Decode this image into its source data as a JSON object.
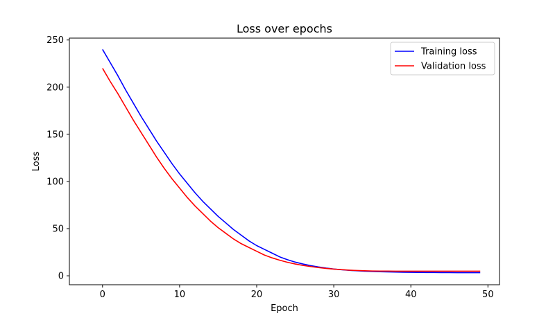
{
  "chart_data": {
    "type": "line",
    "title": "Loss over epochs",
    "xlabel": "Epoch",
    "ylabel": "Loss",
    "xlim": [
      -4.3,
      51.5
    ],
    "ylim": [
      -9.5,
      252
    ],
    "xticks": [
      0,
      10,
      20,
      30,
      40,
      50
    ],
    "yticks": [
      0,
      50,
      100,
      150,
      200,
      250
    ],
    "grid": false,
    "legend_position": "top-right",
    "x": [
      0,
      1,
      2,
      3,
      4,
      5,
      6,
      7,
      8,
      9,
      10,
      11,
      12,
      13,
      14,
      15,
      16,
      17,
      18,
      19,
      20,
      21,
      22,
      23,
      24,
      25,
      26,
      27,
      28,
      29,
      30,
      31,
      32,
      33,
      34,
      35,
      36,
      37,
      38,
      39,
      40,
      41,
      42,
      43,
      44,
      45,
      46,
      47,
      48,
      49
    ],
    "series": [
      {
        "name": "Training loss",
        "color": "#0000ff",
        "values": [
          240,
          226,
          212,
          197,
          183,
          169,
          156,
          143,
          131,
          119,
          108,
          98,
          88,
          79,
          71,
          63,
          56,
          49,
          43,
          37,
          32,
          28,
          24,
          20,
          17,
          14.5,
          12.5,
          10.8,
          9.4,
          8.2,
          7.2,
          6.4,
          5.8,
          5.3,
          4.9,
          4.6,
          4.3,
          4.1,
          3.9,
          3.8,
          3.7,
          3.6,
          3.5,
          3.5,
          3.4,
          3.4,
          3.3,
          3.3,
          3.3,
          3.3
        ]
      },
      {
        "name": "Validation loss",
        "color": "#ff0000",
        "values": [
          220,
          206,
          193,
          179,
          165,
          152,
          139,
          126,
          114,
          103,
          93,
          83,
          74,
          66,
          58,
          51,
          45,
          39,
          34,
          30,
          26,
          22,
          19,
          16.5,
          14.3,
          12.5,
          11,
          9.8,
          8.7,
          7.8,
          7.1,
          6.5,
          6,
          5.6,
          5.3,
          5.1,
          5,
          5,
          4.9,
          4.9,
          4.9,
          4.9,
          4.9,
          4.9,
          4.9,
          4.9,
          4.9,
          4.9,
          4.9,
          4.9
        ]
      }
    ]
  }
}
